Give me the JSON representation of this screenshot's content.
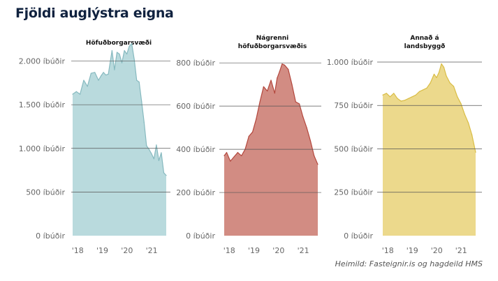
{
  "title": "Fjöldi auglýstra eigna",
  "source": "Heimild: Fasteignir.is og hagdeild HMS",
  "chart_data": [
    {
      "type": "area",
      "title": "Höfuðborgarsvæði",
      "color": "#b9dadd",
      "line_color": "#86b9bf",
      "ylim": [
        0,
        2300
      ],
      "yticks": [
        0,
        500,
        1000,
        1500,
        2000
      ],
      "ytick_labels": [
        "0 íbúðir",
        "500 íbúðir",
        "1.000 íbúðir",
        "1.500 íbúðir",
        "2.000 íbúðir"
      ],
      "xticks": [
        2018,
        2019,
        2020,
        2021
      ],
      "xtick_labels": [
        "'18",
        "'19",
        "'20",
        "'21"
      ],
      "x": [
        2017.85,
        2018.0,
        2018.15,
        2018.3,
        2018.45,
        2018.6,
        2018.75,
        2018.9,
        2019.0,
        2019.1,
        2019.2,
        2019.3,
        2019.45,
        2019.55,
        2019.65,
        2019.75,
        2019.85,
        2019.95,
        2020.05,
        2020.15,
        2020.25,
        2020.35,
        2020.45,
        2020.55,
        2020.65,
        2020.75,
        2020.85,
        2020.95,
        2021.05,
        2021.15,
        2021.25,
        2021.35,
        2021.45,
        2021.55,
        2021.65
      ],
      "values": [
        1620,
        1650,
        1620,
        1780,
        1710,
        1860,
        1870,
        1780,
        1830,
        1870,
        1840,
        1850,
        2120,
        1900,
        2100,
        2080,
        1980,
        2120,
        2080,
        2170,
        2200,
        2020,
        1780,
        1760,
        1540,
        1300,
        1030,
        990,
        940,
        880,
        1040,
        860,
        950,
        720,
        690
      ]
    },
    {
      "type": "area",
      "title_lines": [
        "Nágrenni",
        "höfuðborgarsvæðis"
      ],
      "color": "#d28c83",
      "line_color": "#b3473d",
      "ylim": [
        0,
        820
      ],
      "yticks": [
        0,
        200,
        400,
        600,
        800
      ],
      "ytick_labels": [
        "0 íbúðir",
        "200 íbúðir",
        "400 íbúðir",
        "600 íbúðir",
        "800 íbúðir"
      ],
      "xticks": [
        2018,
        2019,
        2020,
        2021
      ],
      "xtick_labels": [
        "'18",
        "'19",
        "'20",
        "'21"
      ],
      "x": [
        2017.85,
        2017.95,
        2018.1,
        2018.25,
        2018.4,
        2018.55,
        2018.7,
        2018.85,
        2019.0,
        2019.15,
        2019.3,
        2019.45,
        2019.6,
        2019.75,
        2019.9,
        2020.0,
        2020.1,
        2020.2,
        2020.3,
        2020.45,
        2020.6,
        2020.75,
        2020.9,
        2021.05,
        2021.2,
        2021.35,
        2021.5,
        2021.65
      ],
      "values": [
        370,
        385,
        345,
        365,
        385,
        370,
        400,
        460,
        480,
        540,
        620,
        690,
        670,
        720,
        660,
        730,
        760,
        795,
        790,
        770,
        700,
        620,
        610,
        550,
        500,
        440,
        370,
        330
      ]
    },
    {
      "type": "area",
      "title_lines": [
        "Annað á",
        "landsbyggð"
      ],
      "color": "#ecd98c",
      "line_color": "#d9bd45",
      "ylim": [
        0,
        1020
      ],
      "yticks": [
        0,
        250,
        500,
        750,
        1000
      ],
      "ytick_labels": [
        "0 íbúðir",
        "250 íbúðir",
        "500 íbúðir",
        "750 íbúðir",
        "1.000 íbúðir"
      ],
      "xticks": [
        2018,
        2019,
        2020,
        2021
      ],
      "xtick_labels": [
        "'18",
        "'19",
        "'20",
        "'21"
      ],
      "x": [
        2017.85,
        2018.0,
        2018.15,
        2018.3,
        2018.45,
        2018.6,
        2018.75,
        2018.9,
        2019.05,
        2019.2,
        2019.35,
        2019.5,
        2019.65,
        2019.8,
        2019.95,
        2020.05,
        2020.15,
        2020.25,
        2020.35,
        2020.45,
        2020.6,
        2020.75,
        2020.9,
        2021.05,
        2021.2,
        2021.35,
        2021.5,
        2021.65
      ],
      "values": [
        810,
        820,
        800,
        820,
        790,
        775,
        780,
        790,
        800,
        810,
        830,
        840,
        850,
        880,
        930,
        910,
        940,
        990,
        970,
        920,
        880,
        860,
        800,
        760,
        700,
        650,
        580,
        480
      ]
    }
  ]
}
